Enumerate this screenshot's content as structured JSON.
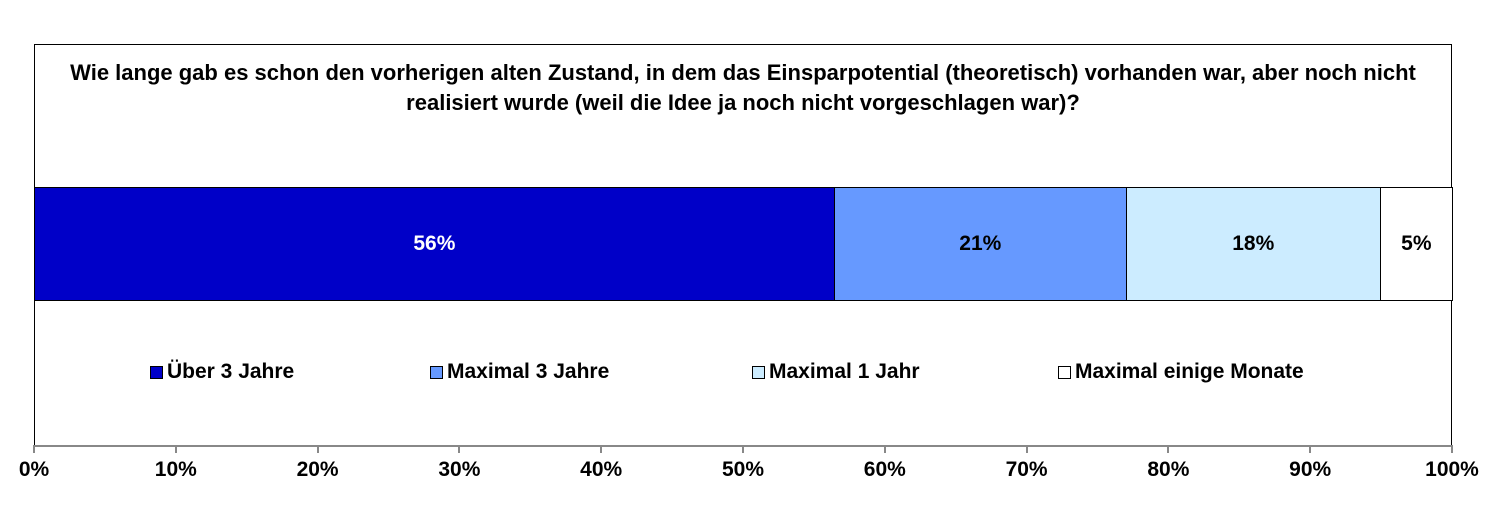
{
  "chart_data": {
    "type": "bar",
    "orientation": "horizontal-stacked-100",
    "title": "Wie lange gab es schon den vorherigen alten Zustand, in dem das Einsparpotential (theoretisch) vorhanden war, aber noch nicht realisiert wurde (weil die Idee ja noch nicht vorgeschlagen war)?",
    "series": [
      {
        "name": "Über 3 Jahre",
        "value": 56.4,
        "label": "56%",
        "color": "#0000C8",
        "label_color": "#FFFFFF"
      },
      {
        "name": "Maximal 3 Jahre",
        "value": 20.6,
        "label": "21%",
        "color": "#6699FF",
        "label_color": "#000000"
      },
      {
        "name": "Maximal 1 Jahr",
        "value": 17.9,
        "label": "18%",
        "color": "#CCECFF",
        "label_color": "#000000"
      },
      {
        "name": "Maximal einige Monate",
        "value": 5.1,
        "label": "5%",
        "color": "#FFFFFF",
        "label_color": "#000000"
      }
    ],
    "xlim": [
      0,
      100
    ],
    "x_ticks": [
      "0%",
      "10%",
      "20%",
      "30%",
      "40%",
      "50%",
      "60%",
      "70%",
      "80%",
      "90%",
      "100%"
    ],
    "legend_position": "bottom",
    "grid": false
  }
}
